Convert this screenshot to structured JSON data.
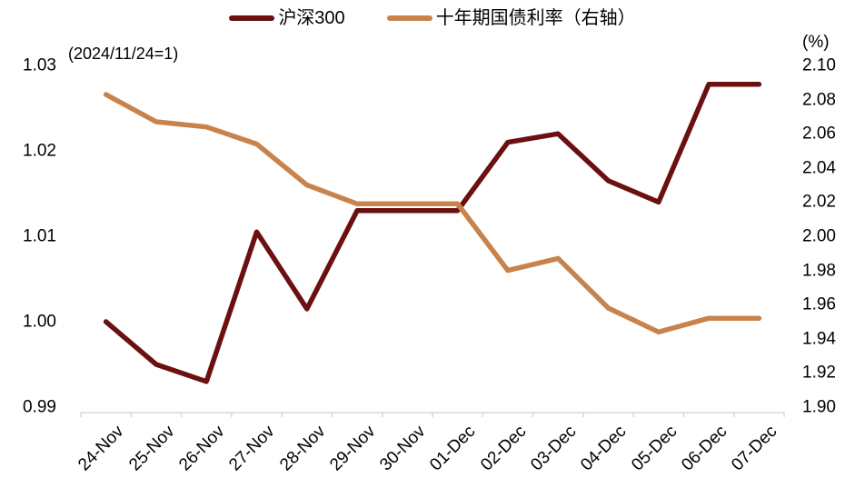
{
  "legend": {
    "items": [
      {
        "label": "沪深300",
        "color": "#6B0F10"
      },
      {
        "label": "十年期国债利率（右轴）",
        "color": "#C8834C"
      }
    ]
  },
  "annotations": {
    "index_base_note": "(2024/11/24=1)",
    "right_axis_unit": "(%)"
  },
  "colors": {
    "axis_line": "#D9D9D9",
    "tick_mark": "#BFBFBF",
    "text": "#000000",
    "series_csi300": "#6B0F10",
    "series_treasury": "#C8834C"
  },
  "chart_data": {
    "type": "line",
    "title": "",
    "xlabel": "",
    "ylabel_left": "(2024/11/24=1)",
    "ylabel_right": "(%)",
    "grid": false,
    "legend_position": "top",
    "categories": [
      "24-Nov",
      "25-Nov",
      "26-Nov",
      "27-Nov",
      "28-Nov",
      "29-Nov",
      "30-Nov",
      "01-Dec",
      "02-Dec",
      "03-Dec",
      "04-Dec",
      "05-Dec",
      "06-Dec",
      "07-Dec"
    ],
    "series": [
      {
        "name": "沪深300",
        "axis": "left",
        "color": "#6B0F10",
        "values": [
          1.0,
          0.995,
          0.993,
          1.0105,
          1.0015,
          1.013,
          1.013,
          1.013,
          1.021,
          1.022,
          1.0165,
          1.014,
          1.0278,
          1.0278
        ]
      },
      {
        "name": "十年期国债利率（右轴）",
        "axis": "right",
        "color": "#C8834C",
        "values": [
          2.083,
          2.067,
          2.064,
          2.054,
          2.03,
          2.019,
          2.019,
          2.019,
          1.98,
          1.987,
          1.958,
          1.944,
          1.952,
          1.952
        ]
      }
    ],
    "left_axis": {
      "min": 0.99,
      "max": 1.03,
      "ticks": [
        "1.03",
        "1.02",
        "1.01",
        "1.00",
        "0.99"
      ]
    },
    "right_axis": {
      "min": 1.9,
      "max": 2.1,
      "unit": "(%)",
      "ticks": [
        "2.10",
        "2.08",
        "2.06",
        "2.04",
        "2.02",
        "2.00",
        "1.98",
        "1.96",
        "1.94",
        "1.92",
        "1.90"
      ]
    }
  }
}
